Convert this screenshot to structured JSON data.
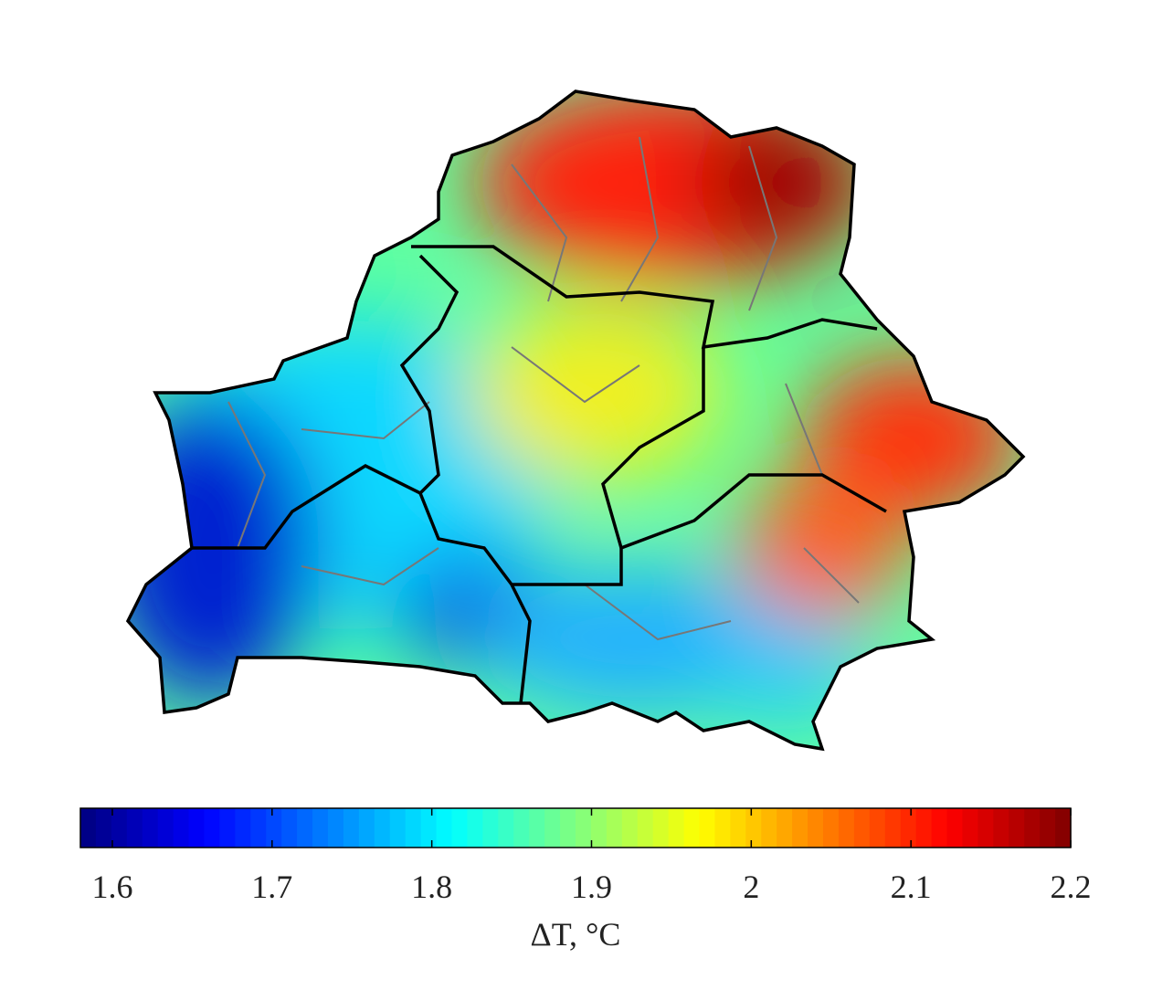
{
  "colorbar": {
    "label": "ΔT, °C",
    "lim": [
      1.58,
      2.2
    ],
    "ticks": [
      1.6,
      1.7,
      1.8,
      1.9,
      2,
      2.1,
      2.2
    ],
    "colormap": "jet"
  }
}
